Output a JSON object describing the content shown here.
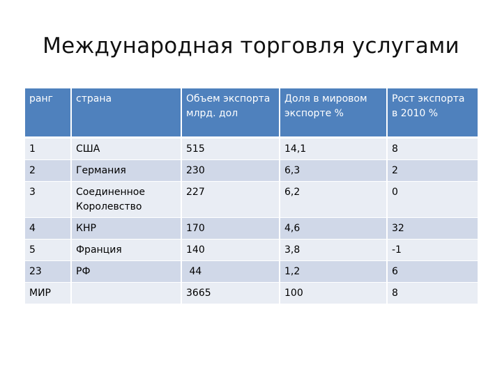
{
  "slide": {
    "title": "Международная торговля услугами"
  },
  "table": {
    "headers": [
      "ранг",
      "страна",
      "Объем экспорта млрд. дол",
      "Доля в мировом экспорте %",
      "Рост экспорта в  2010 %"
    ],
    "rows": [
      [
        "1",
        "США",
        "515",
        "14,1",
        "8"
      ],
      [
        "2",
        "Германия",
        "230",
        "6,3",
        "2"
      ],
      [
        "3",
        "Соединенное Королевство",
        "227",
        "6,2",
        "0"
      ],
      [
        "4",
        "КНР",
        "170",
        "4,6",
        "32"
      ],
      [
        "5",
        "Франция",
        "140",
        "3,8",
        "-1"
      ],
      [
        "23",
        "РФ",
        " 44",
        "1,2",
        "6"
      ],
      [
        "МИР",
        "",
        "3665",
        "100",
        "8"
      ]
    ]
  }
}
